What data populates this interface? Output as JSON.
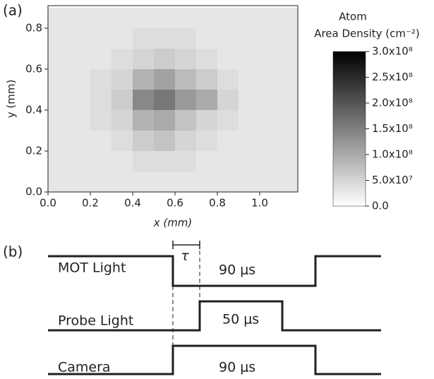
{
  "chart_data": {
    "type": "heatmap",
    "panel_label": "(a)",
    "xlabel": "x (mm)",
    "ylabel": "y (mm)",
    "colorbar_title": [
      "Atom",
      "Area Density (cm⁻²)"
    ],
    "xbins": [
      0,
      0.1,
      0.2,
      0.3,
      0.4,
      0.5,
      0.6,
      0.7,
      0.8,
      0.9,
      1.0,
      1.1,
      1.2
    ],
    "ybins": [
      0,
      0.1,
      0.2,
      0.3,
      0.4,
      0.5,
      0.6,
      0.7,
      0.8,
      0.9
    ],
    "z": [
      [
        30000000,
        30000000,
        30000000,
        30000000,
        30000000,
        30000000,
        30000000,
        30000000,
        30000000,
        30000000,
        30000000,
        30000000
      ],
      [
        30000000,
        30000000,
        30000000,
        30000000,
        40000000,
        40000000,
        40000000,
        30000000,
        30000000,
        30000000,
        30000000,
        30000000
      ],
      [
        30000000,
        30000000,
        30000000,
        40000000,
        60000000,
        70000000,
        50000000,
        40000000,
        30000000,
        30000000,
        30000000,
        30000000
      ],
      [
        30000000,
        30000000,
        40000000,
        50000000,
        90000000,
        100000000,
        70000000,
        50000000,
        40000000,
        30000000,
        30000000,
        30000000
      ],
      [
        30000000,
        30000000,
        40000000,
        60000000,
        140000000,
        160000000,
        120000000,
        100000000,
        50000000,
        30000000,
        30000000,
        30000000
      ],
      [
        30000000,
        30000000,
        40000000,
        50000000,
        90000000,
        110000000,
        80000000,
        60000000,
        40000000,
        30000000,
        30000000,
        30000000
      ],
      [
        30000000,
        30000000,
        30000000,
        40000000,
        50000000,
        60000000,
        50000000,
        40000000,
        30000000,
        30000000,
        30000000,
        30000000
      ],
      [
        30000000,
        30000000,
        30000000,
        30000000,
        40000000,
        40000000,
        40000000,
        30000000,
        30000000,
        30000000,
        30000000,
        30000000
      ],
      [
        30000000,
        30000000,
        30000000,
        30000000,
        30000000,
        30000000,
        30000000,
        30000000,
        30000000,
        30000000,
        30000000,
        30000000
      ]
    ],
    "xlim": [
      0,
      1.18
    ],
    "ylim": [
      0,
      0.91
    ],
    "zlim": [
      0,
      300000000
    ],
    "xticks": [
      {
        "value": 0,
        "label": "0.0"
      },
      0.2,
      0.4,
      0.6,
      0.8,
      {
        "value": 1,
        "label": "1.0"
      }
    ],
    "yticks": [
      {
        "value": 0,
        "label": "0.0"
      },
      0.2,
      0.4,
      0.6,
      0.8
    ],
    "zticks": [
      {
        "value": 0,
        "label": "0.0"
      },
      {
        "value": 50000000,
        "label": "5.0x10⁷"
      },
      {
        "value": 100000000,
        "label": "1.0x10⁸"
      },
      {
        "value": 150000000,
        "label": "1.5x10⁸"
      },
      {
        "value": 200000000,
        "label": "2.0x10⁸"
      },
      {
        "value": 250000000,
        "label": "2.5x10⁸"
      },
      {
        "value": 300000000,
        "label": "3.0x10⁸"
      }
    ]
  },
  "diagram": {
    "panel_label": "(b)",
    "tau": "τ",
    "signals": [
      {
        "label": "MOT Light",
        "duration": "90 μs"
      },
      {
        "label": "Probe Light",
        "duration": "50 μs"
      },
      {
        "label": "Camera",
        "duration": "90 μs"
      }
    ]
  }
}
